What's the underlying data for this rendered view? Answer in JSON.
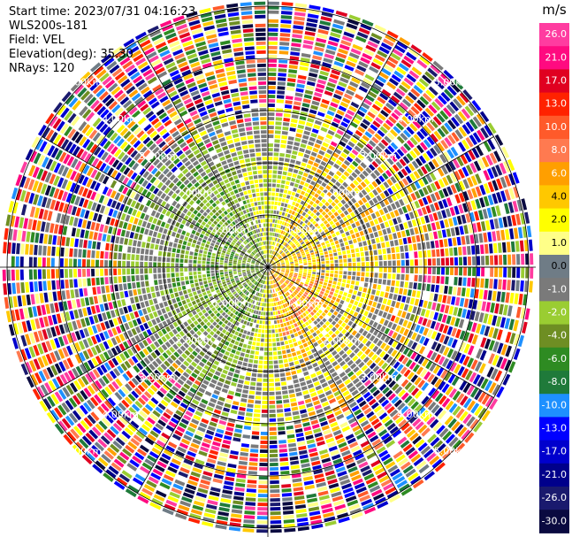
{
  "info": {
    "start_time": "Start time: 2023/07/31 04:16:23",
    "instrument": "WLS200s-181",
    "field": "Field: VEL",
    "elevation": "Elevation(deg): 35.30",
    "nrays": "NRays: 120"
  },
  "colorbar": {
    "unit": "m/s",
    "ticks": [
      "26.0",
      "21.0",
      "17.0",
      "13.0",
      "10.0",
      "8.0",
      "6.0",
      "4.0",
      "2.0",
      "1.0",
      "0.0",
      "-1.0",
      "-2.0",
      "-4.0",
      "-6.0",
      "-8.0",
      "-10.0",
      "-13.0",
      "-17.0",
      "-21.0",
      "-26.0",
      "-30.0"
    ],
    "colors": [
      "#ff3ca0",
      "#ff0a80",
      "#e00020",
      "#ff2200",
      "#ff5a2a",
      "#ff7a50",
      "#ff9f00",
      "#ffc800",
      "#ffff00",
      "#ffff88",
      "#6f7c86",
      "#7a7a7a",
      "#9acd32",
      "#6e8e23",
      "#2e8b22",
      "#1f7a3a",
      "#1e90ff",
      "#0000ff",
      "#0000cd",
      "#00008b",
      "#1a1a6e",
      "#0a0a40"
    ]
  },
  "chart_data": {
    "type": "heatmap",
    "projection": "polar PPI scan",
    "field": "VEL",
    "units": "m/s",
    "rays": 120,
    "range_rings_km": [
      1,
      2,
      3,
      4,
      5
    ],
    "range_ring_labels": [
      "1.00km",
      "2.00km",
      "3.00km",
      "4.00km",
      "5.00km"
    ],
    "max_range_km": 5.1,
    "color_range": [
      -30,
      26
    ],
    "value_pattern": {
      "west_sector": "negative velocities (-1 to -8 m/s)",
      "east_sector": "positive velocities (1 to 6 m/s)",
      "beyond_3km": "noisy, full-range values"
    }
  }
}
